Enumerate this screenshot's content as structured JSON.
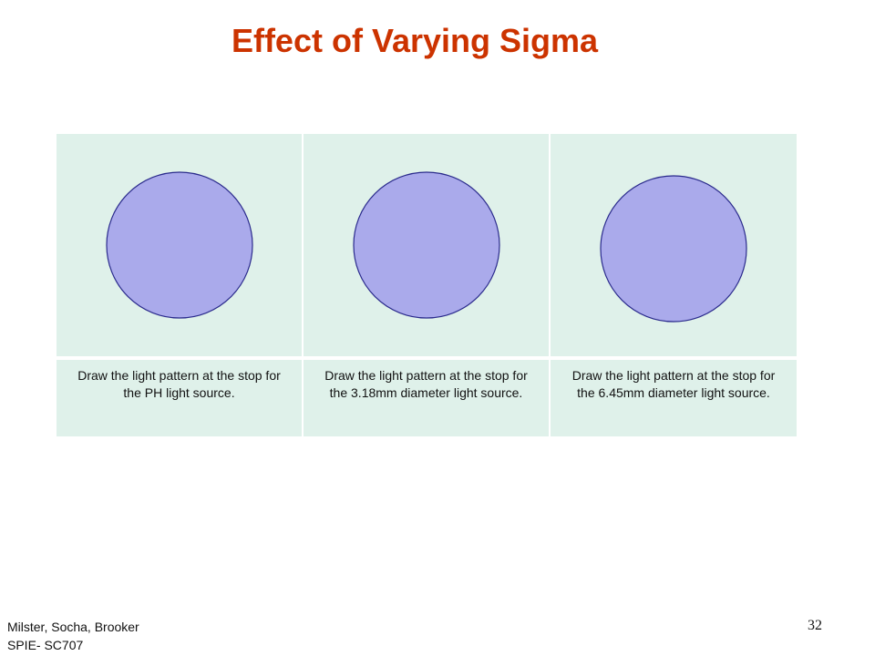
{
  "slide": {
    "title": "Effect of Varying Sigma"
  },
  "panels": [
    {
      "caption": "Draw the light pattern at the stop for the PH light source."
    },
    {
      "caption": "Draw the light pattern at the stop for the 3.18mm diameter light source."
    },
    {
      "caption": "Draw the light pattern at the stop for the 6.45mm diameter light source."
    }
  ],
  "colors": {
    "title": "#cc3300",
    "panel_background": "#dff1ea",
    "circle_fill": "#aaaaeb",
    "circle_stroke": "#2a2a8c"
  },
  "footer": {
    "authors": "Milster, Socha, Brooker",
    "course": "SPIE- SC707",
    "page_number": "32"
  }
}
